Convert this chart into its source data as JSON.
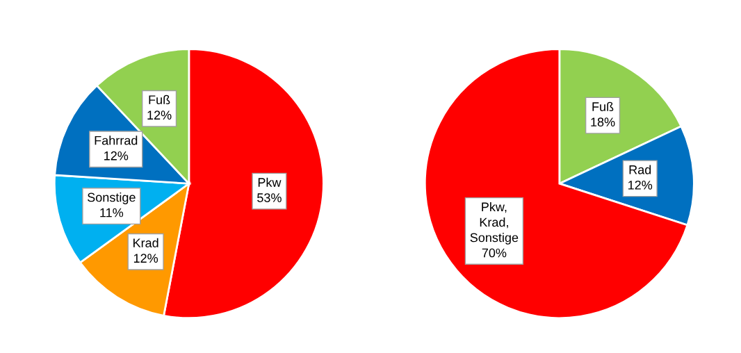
{
  "chart_data": [
    {
      "type": "pie",
      "categories": [
        "Pkw",
        "Krad",
        "Sonstige",
        "Fahrrad",
        "Fuß"
      ],
      "values": [
        53,
        12,
        11,
        12,
        12
      ],
      "colors": [
        "#ff0000",
        "#ff9900",
        "#00b0f0",
        "#0070c0",
        "#92d050"
      ],
      "value_labels": [
        "53%",
        "12%",
        "11%",
        "12%",
        "12%"
      ]
    },
    {
      "type": "pie",
      "categories": [
        "Fuß",
        "Rad",
        "Pkw, Krad, Sonstige"
      ],
      "values": [
        18,
        12,
        70
      ],
      "colors": [
        "#92d050",
        "#0070c0",
        "#ff0000"
      ],
      "value_labels": [
        "18%",
        "12%",
        "70%"
      ]
    }
  ]
}
